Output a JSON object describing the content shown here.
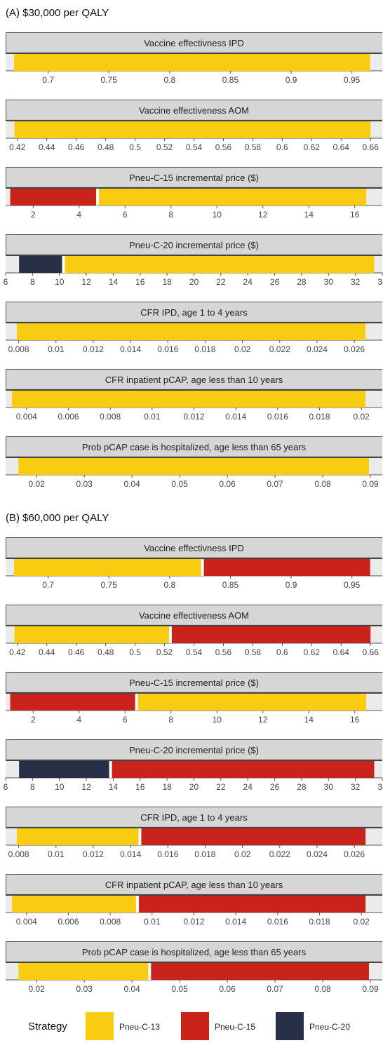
{
  "colors": {
    "Pneu-C-13": "#f9cc12",
    "Pneu-C-15": "#c9231b",
    "Pneu-C-20": "#283047",
    "strip_bg": "#d6d6d6",
    "panel_bg": "#ebebeb",
    "divider": "#ffffff"
  },
  "legend": {
    "title": "Strategy",
    "items": [
      {
        "label": "Pneu-C-13",
        "color_key": "Pneu-C-13"
      },
      {
        "label": "Pneu-C-15",
        "color_key": "Pneu-C-15"
      },
      {
        "label": "Pneu-C-20",
        "color_key": "Pneu-C-20"
      }
    ]
  },
  "chart_data": [
    {
      "type": "bar",
      "title": "(A) $30,000 per QALY",
      "facets": [
        {
          "title": "Vaccine effectivness IPD",
          "xlim": [
            0.665,
            0.975
          ],
          "segments": [
            {
              "from": 0.672,
              "to": 0.965,
              "strategy": "Pneu-C-13"
            }
          ],
          "ticks": [
            "0.7",
            "0.75",
            "0.8",
            "0.85",
            "0.9",
            "0.95"
          ]
        },
        {
          "title": "Vaccine effectiveness AOM",
          "xlim": [
            0.412,
            0.668
          ],
          "segments": [
            {
              "from": 0.418,
              "to": 0.66,
              "strategy": "Pneu-C-13"
            }
          ],
          "ticks": [
            "0.42",
            "0.44",
            "0.46",
            "0.48",
            "0.5",
            "0.52",
            "0.54",
            "0.56",
            "0.58",
            "0.6",
            "0.62",
            "0.64",
            "0.66"
          ]
        },
        {
          "title": "Pneu-C-15 incremental price ($)",
          "xlim": [
            0.8,
            17.2
          ],
          "segments": [
            {
              "from": 1.0,
              "to": 4.8,
              "strategy": "Pneu-C-15"
            },
            {
              "from": 4.8,
              "to": 16.5,
              "strategy": "Pneu-C-13"
            }
          ],
          "ticks": [
            "2",
            "4",
            "6",
            "8",
            "10",
            "12",
            "14",
            "16"
          ]
        },
        {
          "title": "Pneu-C-20 incremental price ($)",
          "xlim": [
            6,
            34
          ],
          "segments": [
            {
              "from": 7.0,
              "to": 10.3,
              "strategy": "Pneu-C-20"
            },
            {
              "from": 10.3,
              "to": 33.4,
              "strategy": "Pneu-C-13"
            }
          ],
          "ticks": [
            "6",
            "8",
            "10",
            "12",
            "14",
            "16",
            "18",
            "20",
            "22",
            "24",
            "26",
            "28",
            "30",
            "32",
            "34"
          ]
        },
        {
          "title": "CFR IPD, age 1 to 4 years",
          "xlim": [
            0.0073,
            0.0275
          ],
          "segments": [
            {
              "from": 0.0079,
              "to": 0.0266,
              "strategy": "Pneu-C-13"
            }
          ],
          "ticks": [
            "0.008",
            "0.01",
            "0.012",
            "0.014",
            "0.016",
            "0.018",
            "0.02",
            "0.022",
            "0.024",
            "0.026"
          ]
        },
        {
          "title": "CFR inpatient pCAP, age less than 10 years",
          "xlim": [
            0.003,
            0.021
          ],
          "segments": [
            {
              "from": 0.0033,
              "to": 0.0202,
              "strategy": "Pneu-C-13"
            }
          ],
          "ticks": [
            "0.004",
            "0.006",
            "0.008",
            "0.01",
            "0.012",
            "0.014",
            "0.016",
            "0.018",
            "0.02"
          ]
        },
        {
          "title": "Prob pCAP case is hospitalized, age less than 65 years",
          "xlim": [
            0.0135,
            0.0925
          ],
          "segments": [
            {
              "from": 0.0162,
              "to": 0.0897,
              "strategy": "Pneu-C-13"
            }
          ],
          "ticks": [
            "0.02",
            "0.03",
            "0.04",
            "0.05",
            "0.06",
            "0.07",
            "0.08",
            "0.09"
          ]
        }
      ]
    },
    {
      "type": "bar",
      "title": "(B) $60,000 per QALY",
      "facets": [
        {
          "title": "Vaccine effectivness IPD",
          "xlim": [
            0.665,
            0.975
          ],
          "segments": [
            {
              "from": 0.672,
              "to": 0.827,
              "strategy": "Pneu-C-13"
            },
            {
              "from": 0.827,
              "to": 0.965,
              "strategy": "Pneu-C-15"
            }
          ],
          "ticks": [
            "0.7",
            "0.75",
            "0.8",
            "0.85",
            "0.9",
            "0.95"
          ]
        },
        {
          "title": "Vaccine effectiveness AOM",
          "xlim": [
            0.412,
            0.668
          ],
          "segments": [
            {
              "from": 0.418,
              "to": 0.524,
              "strategy": "Pneu-C-13"
            },
            {
              "from": 0.524,
              "to": 0.66,
              "strategy": "Pneu-C-15"
            }
          ],
          "ticks": [
            "0.42",
            "0.44",
            "0.46",
            "0.48",
            "0.5",
            "0.52",
            "0.54",
            "0.56",
            "0.58",
            "0.6",
            "0.62",
            "0.64",
            "0.66"
          ]
        },
        {
          "title": "Pneu-C-15 incremental price ($)",
          "xlim": [
            0.8,
            17.2
          ],
          "segments": [
            {
              "from": 1.0,
              "to": 6.5,
              "strategy": "Pneu-C-15"
            },
            {
              "from": 6.5,
              "to": 16.5,
              "strategy": "Pneu-C-13"
            }
          ],
          "ticks": [
            "2",
            "4",
            "6",
            "8",
            "10",
            "12",
            "14",
            "16"
          ]
        },
        {
          "title": "Pneu-C-20 incremental price ($)",
          "xlim": [
            6,
            34
          ],
          "segments": [
            {
              "from": 7.0,
              "to": 13.8,
              "strategy": "Pneu-C-20"
            },
            {
              "from": 13.8,
              "to": 33.4,
              "strategy": "Pneu-C-15"
            }
          ],
          "ticks": [
            "6",
            "8",
            "10",
            "12",
            "14",
            "16",
            "18",
            "20",
            "22",
            "24",
            "26",
            "28",
            "30",
            "32",
            "34"
          ]
        },
        {
          "title": "CFR IPD, age 1 to 4 years",
          "xlim": [
            0.0073,
            0.0275
          ],
          "segments": [
            {
              "from": 0.0079,
              "to": 0.0145,
              "strategy": "Pneu-C-13"
            },
            {
              "from": 0.0145,
              "to": 0.0266,
              "strategy": "Pneu-C-15"
            }
          ],
          "ticks": [
            "0.008",
            "0.01",
            "0.012",
            "0.014",
            "0.016",
            "0.018",
            "0.02",
            "0.022",
            "0.024",
            "0.026"
          ]
        },
        {
          "title": "CFR inpatient pCAP, age less than 10 years",
          "xlim": [
            0.003,
            0.021
          ],
          "segments": [
            {
              "from": 0.0033,
              "to": 0.0093,
              "strategy": "Pneu-C-13"
            },
            {
              "from": 0.0093,
              "to": 0.0202,
              "strategy": "Pneu-C-15"
            }
          ],
          "ticks": [
            "0.004",
            "0.006",
            "0.008",
            "0.01",
            "0.012",
            "0.014",
            "0.016",
            "0.018",
            "0.02"
          ]
        },
        {
          "title": "Prob pCAP case is hospitalized, age less than 65 years",
          "xlim": [
            0.0135,
            0.0925
          ],
          "segments": [
            {
              "from": 0.0162,
              "to": 0.0437,
              "strategy": "Pneu-C-13"
            },
            {
              "from": 0.0437,
              "to": 0.0897,
              "strategy": "Pneu-C-15"
            }
          ],
          "ticks": [
            "0.02",
            "0.03",
            "0.04",
            "0.05",
            "0.06",
            "0.07",
            "0.08",
            "0.09"
          ]
        }
      ]
    }
  ]
}
